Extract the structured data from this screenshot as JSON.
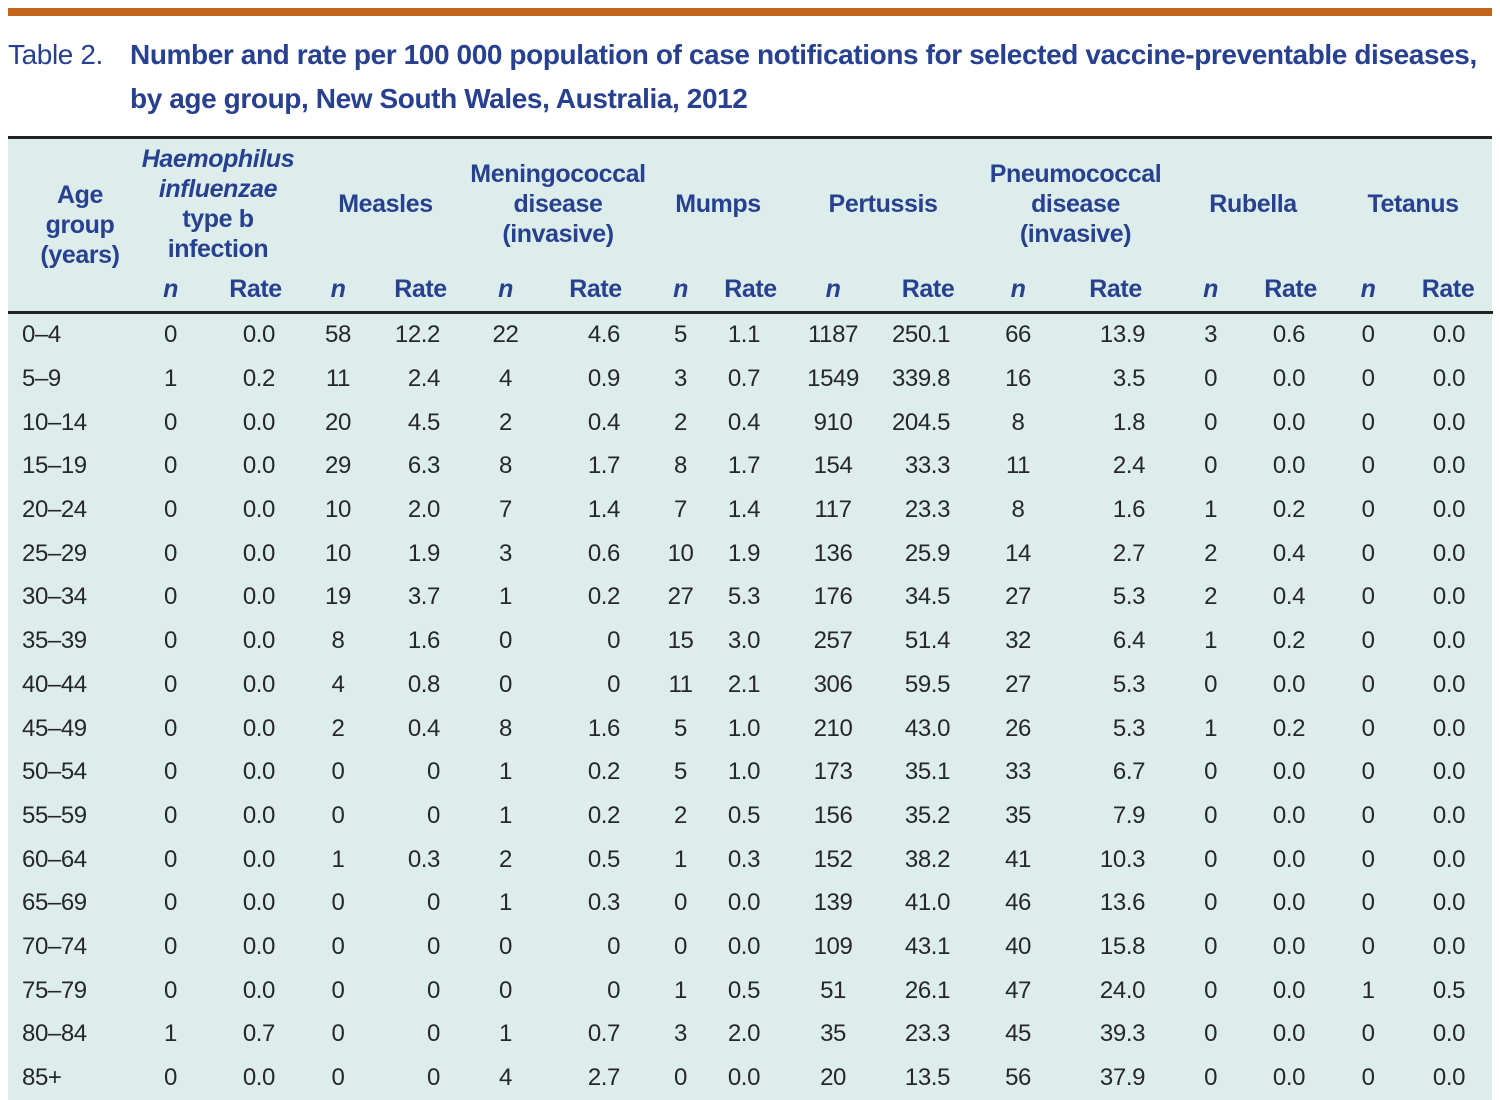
{
  "colors": {
    "accent_bar": "#c2661d",
    "title_blue": "#27408f",
    "header_blue": "#27418f",
    "table_background": "#ddedec",
    "rule_dark": "#222222",
    "data_text": "#272727"
  },
  "title": {
    "label": "Table 2.",
    "lines": [
      "Number and rate per 100 000 population of case notifications for selected vaccine-preventable diseases,",
      "by age group, New South Wales, Australia, 2012"
    ]
  },
  "table": {
    "age_column_header": "Age group (years)",
    "sub_headers": {
      "n": "n",
      "rate": "Rate"
    },
    "disease_groups": [
      {
        "slug": "hib",
        "label_italic": "Haemophilus influenzae",
        "label": "type b infection"
      },
      {
        "slug": "measles",
        "label_italic": "",
        "label": "Measles"
      },
      {
        "slug": "meningococcal",
        "label_italic": "",
        "label": "Meningococcal disease (invasive)"
      },
      {
        "slug": "mumps",
        "label_italic": "",
        "label": "Mumps"
      },
      {
        "slug": "pertussis",
        "label_italic": "",
        "label": "Pertussis"
      },
      {
        "slug": "pneumococcal",
        "label_italic": "",
        "label": "Pneumococcal disease (invasive)"
      },
      {
        "slug": "rubella",
        "label_italic": "",
        "label": "Rubella"
      },
      {
        "slug": "tetanus",
        "label_italic": "",
        "label": "Tetanus"
      }
    ],
    "rows": [
      {
        "age": "0–4",
        "values": [
          "0",
          "0.0",
          "58",
          "12.2",
          "22",
          "4.6",
          "5",
          "1.1",
          "1187",
          "250.1",
          "66",
          "13.9",
          "3",
          "0.6",
          "0",
          "0.0"
        ]
      },
      {
        "age": "5–9",
        "values": [
          "1",
          "0.2",
          "11",
          "2.4",
          "4",
          "0.9",
          "3",
          "0.7",
          "1549",
          "339.8",
          "16",
          "3.5",
          "0",
          "0.0",
          "0",
          "0.0"
        ]
      },
      {
        "age": "10–14",
        "values": [
          "0",
          "0.0",
          "20",
          "4.5",
          "2",
          "0.4",
          "2",
          "0.4",
          "910",
          "204.5",
          "8",
          "1.8",
          "0",
          "0.0",
          "0",
          "0.0"
        ]
      },
      {
        "age": "15–19",
        "values": [
          "0",
          "0.0",
          "29",
          "6.3",
          "8",
          "1.7",
          "8",
          "1.7",
          "154",
          "33.3",
          "11",
          "2.4",
          "0",
          "0.0",
          "0",
          "0.0"
        ]
      },
      {
        "age": "20–24",
        "values": [
          "0",
          "0.0",
          "10",
          "2.0",
          "7",
          "1.4",
          "7",
          "1.4",
          "117",
          "23.3",
          "8",
          "1.6",
          "1",
          "0.2",
          "0",
          "0.0"
        ]
      },
      {
        "age": "25–29",
        "values": [
          "0",
          "0.0",
          "10",
          "1.9",
          "3",
          "0.6",
          "10",
          "1.9",
          "136",
          "25.9",
          "14",
          "2.7",
          "2",
          "0.4",
          "0",
          "0.0"
        ]
      },
      {
        "age": "30–34",
        "values": [
          "0",
          "0.0",
          "19",
          "3.7",
          "1",
          "0.2",
          "27",
          "5.3",
          "176",
          "34.5",
          "27",
          "5.3",
          "2",
          "0.4",
          "0",
          "0.0"
        ]
      },
      {
        "age": "35–39",
        "values": [
          "0",
          "0.0",
          "8",
          "1.6",
          "0",
          "0",
          "15",
          "3.0",
          "257",
          "51.4",
          "32",
          "6.4",
          "1",
          "0.2",
          "0",
          "0.0"
        ]
      },
      {
        "age": "40–44",
        "values": [
          "0",
          "0.0",
          "4",
          "0.8",
          "0",
          "0",
          "11",
          "2.1",
          "306",
          "59.5",
          "27",
          "5.3",
          "0",
          "0.0",
          "0",
          "0.0"
        ]
      },
      {
        "age": "45–49",
        "values": [
          "0",
          "0.0",
          "2",
          "0.4",
          "8",
          "1.6",
          "5",
          "1.0",
          "210",
          "43.0",
          "26",
          "5.3",
          "1",
          "0.2",
          "0",
          "0.0"
        ]
      },
      {
        "age": "50–54",
        "values": [
          "0",
          "0.0",
          "0",
          "0",
          "1",
          "0.2",
          "5",
          "1.0",
          "173",
          "35.1",
          "33",
          "6.7",
          "0",
          "0.0",
          "0",
          "0.0"
        ]
      },
      {
        "age": "55–59",
        "values": [
          "0",
          "0.0",
          "0",
          "0",
          "1",
          "0.2",
          "2",
          "0.5",
          "156",
          "35.2",
          "35",
          "7.9",
          "0",
          "0.0",
          "0",
          "0.0"
        ]
      },
      {
        "age": "60–64",
        "values": [
          "0",
          "0.0",
          "1",
          "0.3",
          "2",
          "0.5",
          "1",
          "0.3",
          "152",
          "38.2",
          "41",
          "10.3",
          "0",
          "0.0",
          "0",
          "0.0"
        ]
      },
      {
        "age": "65–69",
        "values": [
          "0",
          "0.0",
          "0",
          "0",
          "1",
          "0.3",
          "0",
          "0.0",
          "139",
          "41.0",
          "46",
          "13.6",
          "0",
          "0.0",
          "0",
          "0.0"
        ]
      },
      {
        "age": "70–74",
        "values": [
          "0",
          "0.0",
          "0",
          "0",
          "0",
          "0",
          "0",
          "0.0",
          "109",
          "43.1",
          "40",
          "15.8",
          "0",
          "0.0",
          "0",
          "0.0"
        ]
      },
      {
        "age": "75–79",
        "values": [
          "0",
          "0.0",
          "0",
          "0",
          "0",
          "0",
          "1",
          "0.5",
          "51",
          "26.1",
          "47",
          "24.0",
          "0",
          "0.0",
          "1",
          "0.5"
        ]
      },
      {
        "age": "80–84",
        "values": [
          "1",
          "0.7",
          "0",
          "0",
          "1",
          "0.7",
          "3",
          "2.0",
          "35",
          "23.3",
          "45",
          "39.3",
          "0",
          "0.0",
          "0",
          "0.0"
        ]
      },
      {
        "age": "85+",
        "values": [
          "0",
          "0.0",
          "0",
          "0",
          "4",
          "2.7",
          "0",
          "0.0",
          "20",
          "13.5",
          "56",
          "37.9",
          "0",
          "0.0",
          "0",
          "0.0"
        ]
      }
    ]
  }
}
